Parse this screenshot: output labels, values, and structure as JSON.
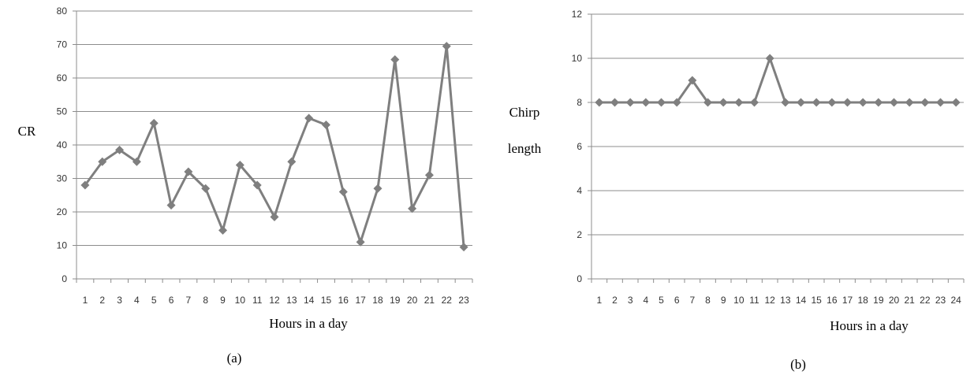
{
  "chart_data": [
    {
      "type": "line",
      "caption": "(a)",
      "xlabel": "Hours in a day",
      "ylabel": "CR",
      "ylim": [
        0,
        80
      ],
      "yticks": [
        0,
        10,
        20,
        30,
        40,
        50,
        60,
        70,
        80
      ],
      "grid": true,
      "legend": "none",
      "color": "#7f7f7f",
      "categories": [
        "1",
        "2",
        "3",
        "4",
        "5",
        "6",
        "7",
        "8",
        "9",
        "10",
        "11",
        "12",
        "13",
        "14",
        "15",
        "16",
        "17",
        "18",
        "19",
        "20",
        "21",
        "22",
        "23"
      ],
      "values": [
        28,
        35,
        38.5,
        35,
        46.5,
        22,
        32,
        27,
        14.5,
        34,
        28,
        18.5,
        35,
        48,
        46,
        26,
        11,
        27,
        65.5,
        21,
        31,
        69.5,
        9.5
      ]
    },
    {
      "type": "line",
      "caption": "(b)",
      "xlabel": "Hours in a day",
      "ylabel": "Chirp length",
      "ylabel_lines": [
        "Chirp",
        "length"
      ],
      "ylim": [
        0,
        12
      ],
      "yticks": [
        0,
        2,
        4,
        6,
        8,
        10,
        12
      ],
      "grid": true,
      "legend": "none",
      "color": "#7f7f7f",
      "categories": [
        "1",
        "2",
        "3",
        "4",
        "5",
        "6",
        "7",
        "8",
        "9",
        "10",
        "11",
        "12",
        "13",
        "14",
        "15",
        "16",
        "17",
        "18",
        "19",
        "20",
        "21",
        "22",
        "23",
        "24"
      ],
      "values": [
        8,
        8,
        8,
        8,
        8,
        8,
        9,
        8,
        8,
        8,
        8,
        10,
        8,
        8,
        8,
        8,
        8,
        8,
        8,
        8,
        8,
        8,
        8,
        8
      ]
    }
  ]
}
